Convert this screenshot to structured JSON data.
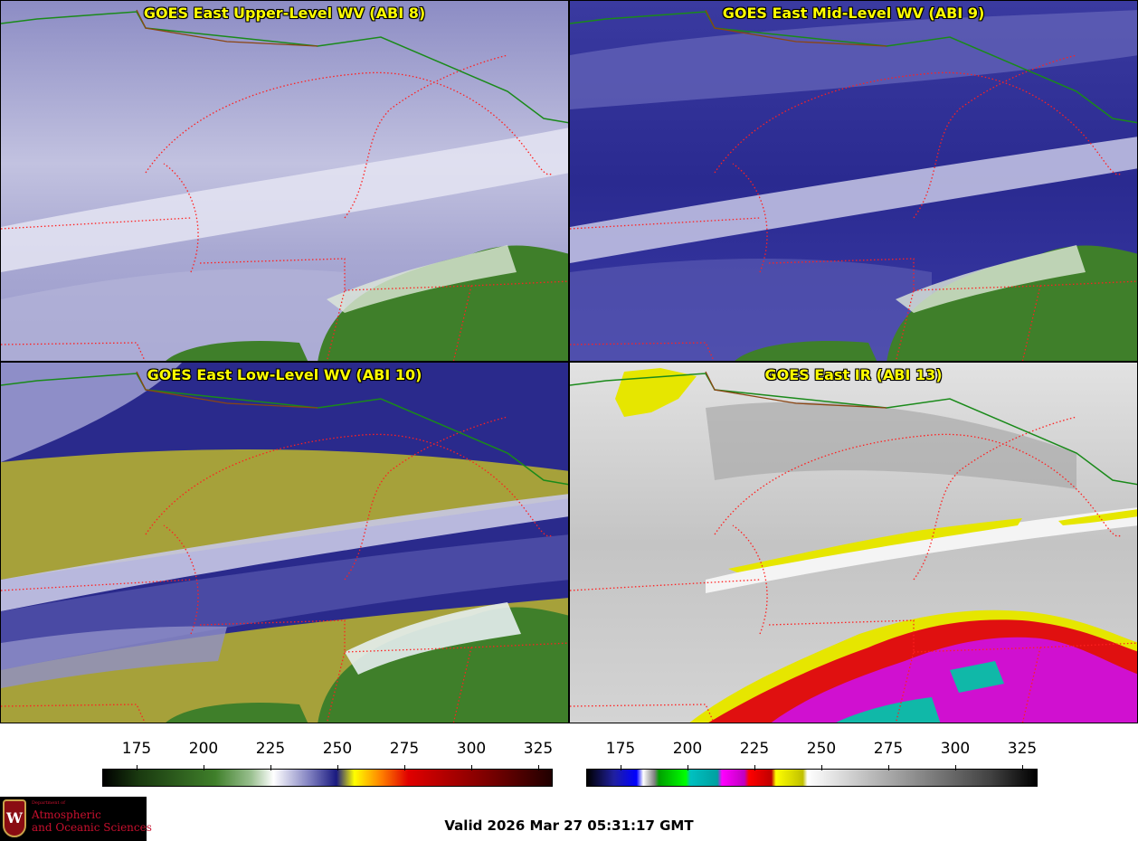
{
  "panels": [
    {
      "title": "GOES East Upper-Level WV (ABI 8)"
    },
    {
      "title": "GOES East Mid-Level WV (ABI 9)"
    },
    {
      "title": "GOES East Low-Level WV (ABI 10)"
    },
    {
      "title": "GOES East IR (ABI 13)"
    }
  ],
  "colorbars": [
    {
      "ticks": [
        "175",
        "200",
        "225",
        "250",
        "275",
        "300",
        "325"
      ]
    },
    {
      "ticks": [
        "175",
        "200",
        "225",
        "250",
        "275",
        "300",
        "325"
      ]
    }
  ],
  "valid_time": "Valid 2026 Mar 27 05:31:17 GMT",
  "logo": {
    "dept": "Department of",
    "line1": "Atmospheric",
    "line2": "and Oceanic Sciences",
    "initial": "W"
  },
  "colors": {
    "title_text": "#ffff00",
    "state_border": "#ff2020",
    "country_border": "#1a8a1a",
    "coast": "#8b4513"
  }
}
